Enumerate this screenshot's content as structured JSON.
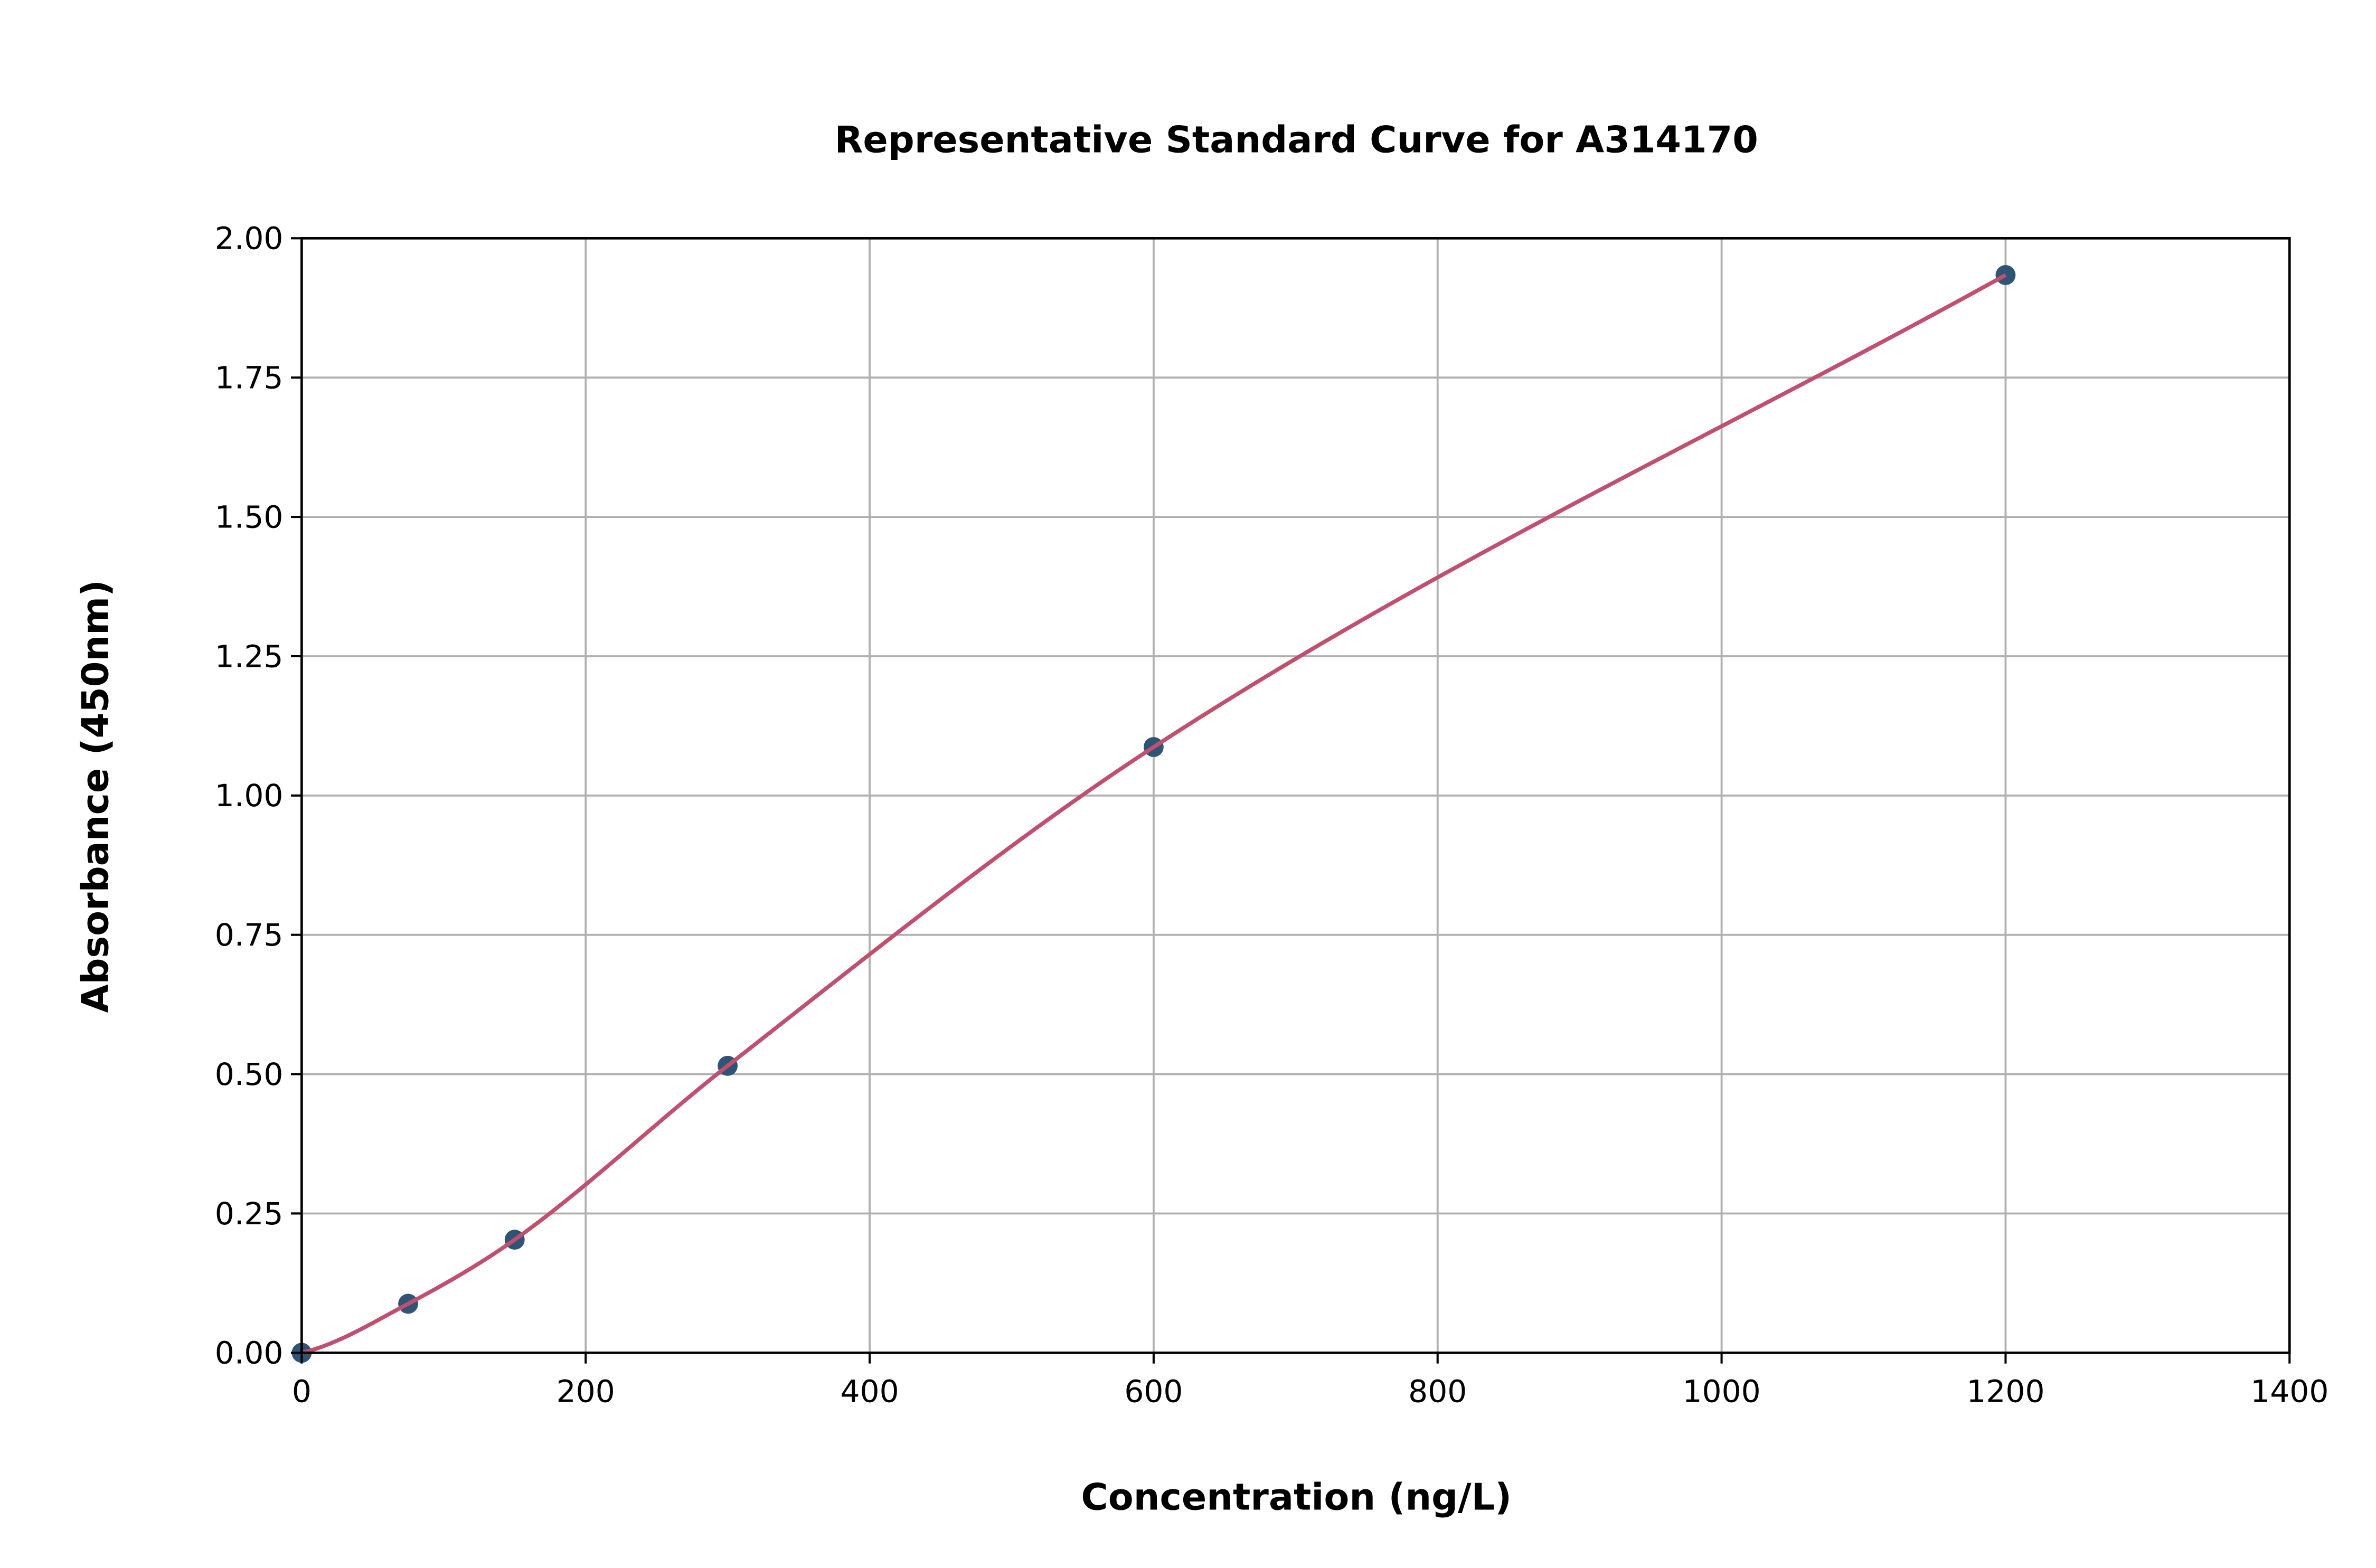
{
  "chart_data": {
    "type": "scatter",
    "title": "Representative Standard Curve for A314170",
    "xlabel": "Concentration (ng/L)",
    "ylabel": "Absorbance (450nm)",
    "xlim": [
      0,
      1400
    ],
    "ylim": [
      0,
      2.0
    ],
    "x_ticks": [
      "0",
      "200",
      "400",
      "600",
      "800",
      "1000",
      "1200",
      "1400"
    ],
    "y_ticks": [
      "0.00",
      "0.25",
      "0.50",
      "0.75",
      "1.00",
      "1.25",
      "1.50",
      "1.75",
      "2.00"
    ],
    "grid": true,
    "points": {
      "x": [
        0,
        75,
        150,
        300,
        600,
        1200
      ],
      "y": [
        0.0,
        0.088,
        0.203,
        0.515,
        1.087,
        1.934
      ]
    },
    "fit_curve": {
      "type": "line",
      "description_visible": false
    },
    "colors": {
      "points": "#2f5475",
      "curve": "#c0506f",
      "grid": "#b0b0b0"
    }
  }
}
